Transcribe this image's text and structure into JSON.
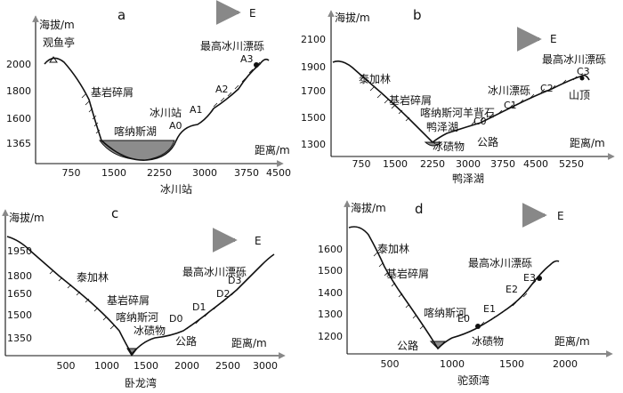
{
  "panels": {
    "a": {
      "letter": "a",
      "ylabel": "海拔/m",
      "xlabel": "距离/m",
      "caption": "冰川站",
      "direction": "E",
      "yticks": [
        "2000",
        "1800",
        "1600",
        "1365"
      ],
      "xticks": [
        "750",
        "1500",
        "2250",
        "3000",
        "3750",
        "4500"
      ],
      "labels": {
        "pavilion": "观鱼亭",
        "bedrock": "基岩碎屑",
        "lake": "喀纳斯湖",
        "station": "冰川站",
        "boulder": "最高冰川漂砾",
        "A0": "A0",
        "A1": "A1",
        "A2": "A2",
        "A3": "A3"
      }
    },
    "b": {
      "letter": "b",
      "ylabel": "海拔/m",
      "xlabel": "距离/m",
      "caption": "鸭泽湖",
      "direction": "E",
      "yticks": [
        "2100",
        "1900",
        "1700",
        "1500",
        "1300"
      ],
      "xticks": [
        "750",
        "1500",
        "2250",
        "3000",
        "3750",
        "4500",
        "5250"
      ],
      "labels": {
        "taiga": "泰加林",
        "bedrock": "基岩碎屑",
        "river": "喀纳斯河羊背石",
        "lake": "鸭泽湖",
        "moraine": "冰碛物",
        "road": "公路",
        "gravel": "冰川漂砾",
        "boulder": "最高冰川漂砾",
        "summit": "山顶",
        "C0": "C0",
        "C1": "C1",
        "C2": "C2",
        "C3": "C3"
      }
    },
    "c": {
      "letter": "c",
      "ylabel": "海拔/m",
      "xlabel": "距离/m",
      "caption": "卧龙湾",
      "direction": "E",
      "yticks": [
        "1950",
        "1800",
        "1650",
        "1500",
        "1350"
      ],
      "xticks": [
        "500",
        "1000",
        "1500",
        "2000",
        "2500",
        "3000"
      ],
      "labels": {
        "taiga": "泰加林",
        "bedrock": "基岩碎屑",
        "river": "喀纳斯河",
        "moraine": "冰碛物",
        "road": "公路",
        "boulder": "最高冰川漂砾",
        "D0": "D0",
        "D1": "D1",
        "D2": "D2",
        "D3": "D3"
      }
    },
    "d": {
      "letter": "d",
      "ylabel": "海拔/m",
      "xlabel": "距离/m",
      "caption": "驼颈湾",
      "direction": "E",
      "yticks": [
        "1600",
        "1500",
        "1400",
        "1300",
        "1200"
      ],
      "xticks": [
        "500",
        "1000",
        "1500",
        "2000"
      ],
      "labels": {
        "taiga": "泰加林",
        "bedrock": "基岩碎屑",
        "river": "喀纳斯河",
        "moraine": "冰碛物",
        "road": "公路",
        "boulder": "最高冰川漂砾",
        "E0": "E0",
        "E1": "E1",
        "E2": "E2",
        "E3": "E3"
      }
    }
  }
}
